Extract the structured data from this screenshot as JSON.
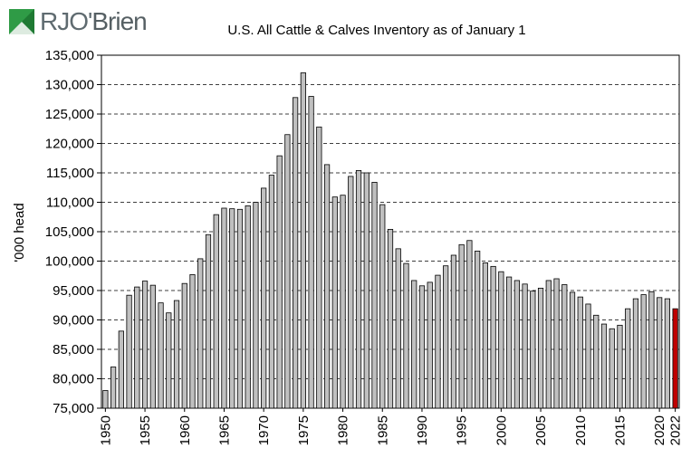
{
  "brand": {
    "name_primary": "RJO'",
    "name_secondary": "Brien",
    "colors": {
      "green": "#2f9b46",
      "gray": "#5f6b70"
    }
  },
  "chart_data": {
    "type": "bar",
    "title": "U.S. All Cattle & Calves Inventory as of January 1",
    "ylabel": "'000 head",
    "xlabel": "",
    "ylim": [
      75000,
      135000
    ],
    "ytick_step": 5000,
    "ytick_labels": [
      "75,000",
      "80,000",
      "85,000",
      "90,000",
      "95,000",
      "100,000",
      "105,000",
      "110,000",
      "115,000",
      "120,000",
      "125,000",
      "130,000",
      "135,000"
    ],
    "xtick_labels": [
      "1950",
      "1955",
      "1960",
      "1965",
      "1970",
      "1975",
      "1980",
      "1985",
      "1990",
      "1995",
      "2000",
      "2005",
      "2010",
      "2015",
      "2020",
      "2022"
    ],
    "grid": true,
    "bar_color": "#c0c0c0",
    "highlight_color": "#c00000",
    "highlight_category": "2022",
    "categories": [
      "1950",
      "1951",
      "1952",
      "1953",
      "1954",
      "1955",
      "1956",
      "1957",
      "1958",
      "1959",
      "1960",
      "1961",
      "1962",
      "1963",
      "1964",
      "1965",
      "1966",
      "1967",
      "1968",
      "1969",
      "1970",
      "1971",
      "1972",
      "1973",
      "1974",
      "1975",
      "1976",
      "1977",
      "1978",
      "1979",
      "1980",
      "1981",
      "1982",
      "1983",
      "1984",
      "1985",
      "1986",
      "1987",
      "1988",
      "1989",
      "1990",
      "1991",
      "1992",
      "1993",
      "1994",
      "1995",
      "1996",
      "1997",
      "1998",
      "1999",
      "2000",
      "2001",
      "2002",
      "2003",
      "2004",
      "2005",
      "2006",
      "2007",
      "2008",
      "2009",
      "2010",
      "2011",
      "2012",
      "2013",
      "2014",
      "2015",
      "2016",
      "2017",
      "2018",
      "2019",
      "2020",
      "2021",
      "2022"
    ],
    "values": [
      78000,
      82000,
      88100,
      94200,
      95600,
      96600,
      95900,
      92900,
      91200,
      93300,
      96200,
      97700,
      100400,
      104500,
      107900,
      109000,
      108900,
      108800,
      109400,
      110000,
      112400,
      114600,
      117900,
      121500,
      127800,
      132000,
      128000,
      122800,
      116400,
      110900,
      111200,
      114400,
      115400,
      115000,
      113400,
      109600,
      105400,
      102100,
      99600,
      96700,
      95800,
      96400,
      97600,
      99200,
      101000,
      102800,
      103500,
      101700,
      99700,
      99100,
      98200,
      97300,
      96700,
      96100,
      94900,
      95400,
      96700,
      97000,
      96000,
      94700,
      93900,
      92700,
      90800,
      89300,
      88500,
      89100,
      91900,
      93600,
      94300,
      94800,
      93800,
      93600,
      91900
    ]
  }
}
